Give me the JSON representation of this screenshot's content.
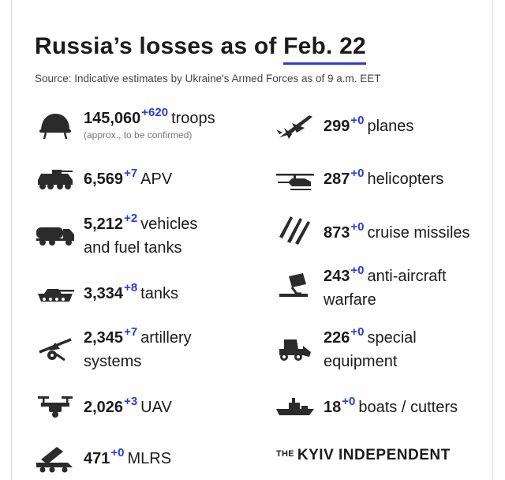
{
  "header": {
    "title_prefix": "Russia’s losses as of ",
    "title_date": "Feb. 22",
    "source": "Source: Indicative estimates by Ukraine's Armed Forces as of 9 a.m. EET"
  },
  "left_items": [
    {
      "icon": "helmet-icon",
      "value": "145,060",
      "delta": "+620",
      "label": "troops",
      "note": "(approx., to be confirmed)"
    },
    {
      "icon": "apv-icon",
      "value": "6,569",
      "delta": "+7",
      "label": "APV"
    },
    {
      "icon": "fuel-truck-icon",
      "value": "5,212",
      "delta": "+2",
      "label": "vehicles",
      "label2": "and fuel tanks"
    },
    {
      "icon": "tank-icon",
      "value": "3,334",
      "delta": "+8",
      "label": "tanks"
    },
    {
      "icon": "artillery-icon",
      "value": "2,345",
      "delta": "+7",
      "label": "artillery",
      "label2": "systems"
    },
    {
      "icon": "drone-icon",
      "value": "2,026",
      "delta": "+3",
      "label": "UAV"
    },
    {
      "icon": "mlrs-icon",
      "value": "471",
      "delta": "+0",
      "label": "MLRS"
    }
  ],
  "right_items": [
    {
      "icon": "plane-icon",
      "value": "299",
      "delta": "+0",
      "label": "planes"
    },
    {
      "icon": "helicopter-icon",
      "value": "287",
      "delta": "+0",
      "label": "helicopters"
    },
    {
      "icon": "missiles-icon",
      "value": "873",
      "delta": "+0",
      "label": "cruise missiles"
    },
    {
      "icon": "anti-aircraft-icon",
      "value": "243",
      "delta": "+0",
      "label": "anti-aircraft",
      "label2": "warfare"
    },
    {
      "icon": "bulldozer-icon",
      "value": "226",
      "delta": "+0",
      "label": "special",
      "label2": "equipment"
    },
    {
      "icon": "boat-icon",
      "value": "18",
      "delta": "+0",
      "label": "boats / cutters"
    }
  ],
  "brand": {
    "the": "THE",
    "name": "KYIV INDEPENDENT"
  },
  "colors": {
    "accent": "#2a3bd8",
    "text": "#1b1b1b",
    "icon": "#2b2b2b"
  }
}
